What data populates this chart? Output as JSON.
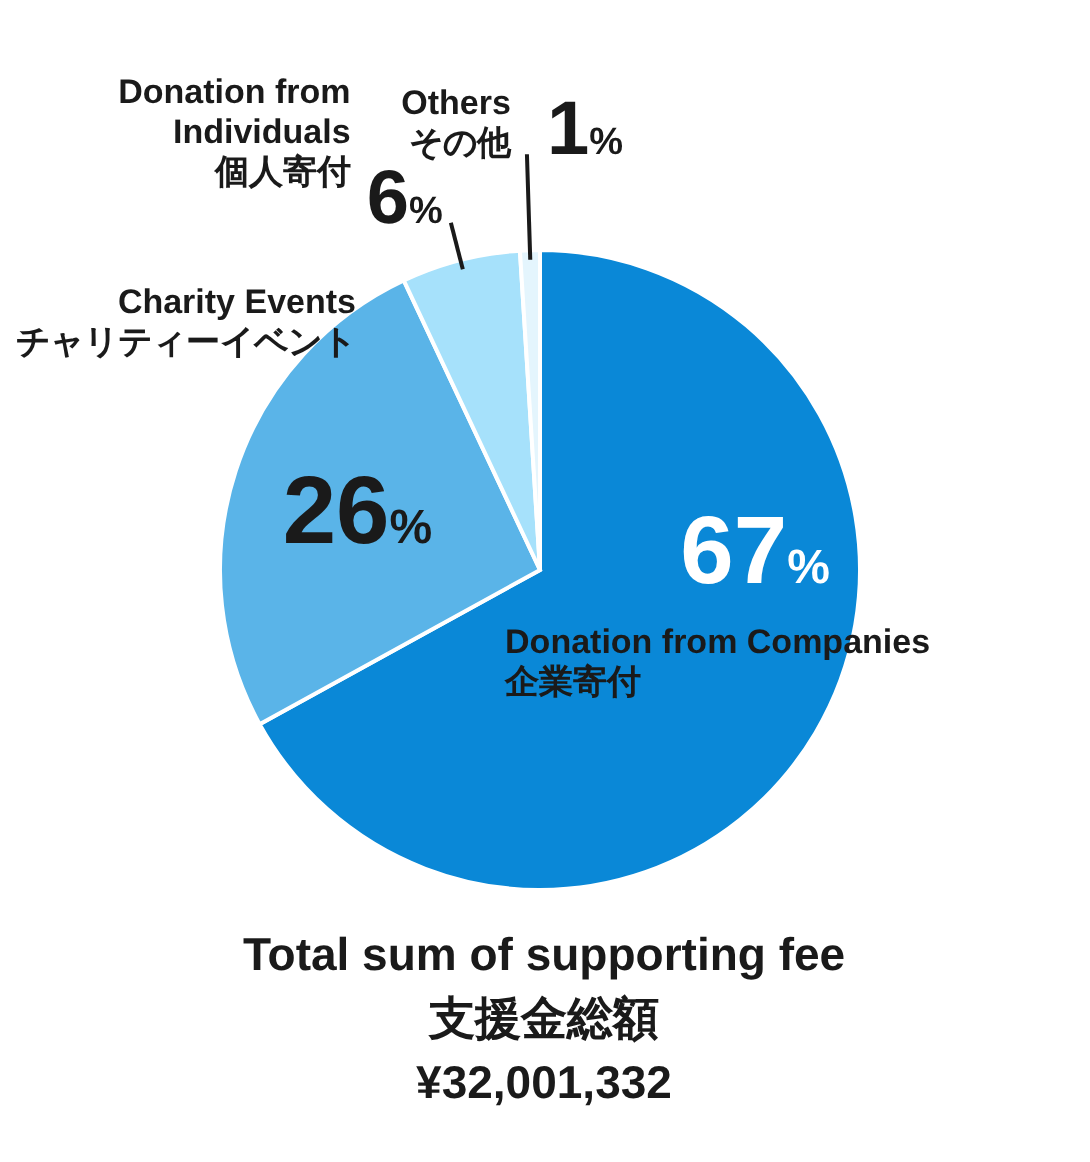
{
  "chart_data": {
    "type": "pie",
    "title": "Total sum of supporting fee",
    "subtitle": "支援金総額",
    "annotations": [
      "¥32,001,332"
    ],
    "categories": [
      "Donation from Companies\n企業寄付",
      "Charity Events\nチャリティーイベント",
      "Donation from\nIndividuals\n個人寄付",
      "Others\nその他"
    ],
    "values": [
      67,
      26,
      6,
      1
    ],
    "value_labels": [
      "67%",
      "26%",
      "6%",
      "1%"
    ],
    "colors": [
      "#0a88d7",
      "#5ab4e8",
      "#a6e1fb",
      "#e4f5fd"
    ]
  }
}
